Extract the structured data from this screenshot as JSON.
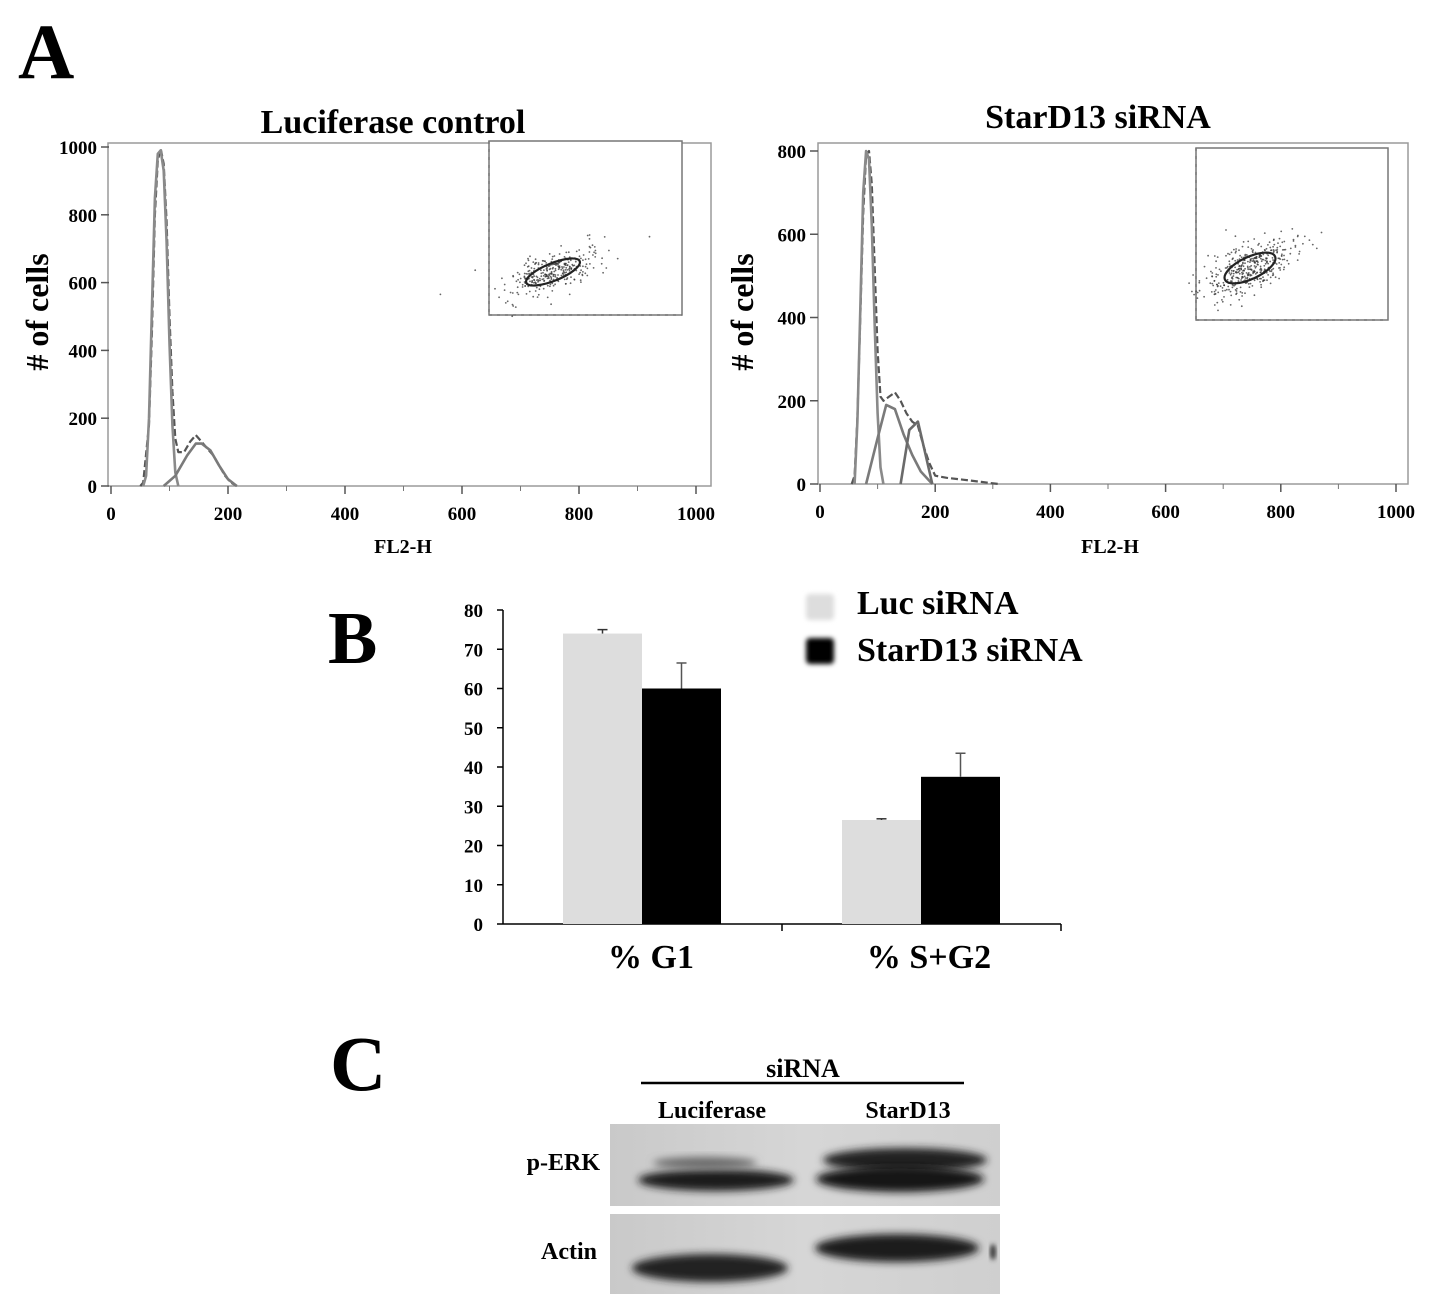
{
  "panels": {
    "a": "A",
    "b": "B",
    "c": "C"
  },
  "chart_data": [
    {
      "type": "line",
      "title": "Luciferase control",
      "xlabel": "FL2-H",
      "ylabel": "# of cells",
      "xlim": [
        0,
        1000
      ],
      "ylim": [
        0,
        1100
      ],
      "x_ticks": [
        0,
        200,
        400,
        600,
        800,
        1000
      ],
      "y_ticks": [
        0,
        200,
        400,
        600,
        800,
        1000
      ],
      "series": [
        {
          "x": [
            50,
            55,
            65,
            70,
            75,
            80,
            85,
            90,
            95,
            100,
            105,
            110,
            115,
            125,
            135,
            145,
            155,
            165,
            175,
            185,
            195,
            205,
            215
          ],
          "values": [
            0,
            10,
            180,
            450,
            800,
            960,
            995,
            950,
            780,
            500,
            280,
            140,
            100,
            100,
            130,
            150,
            130,
            110,
            90,
            60,
            30,
            10,
            0
          ]
        },
        {
          "x": [
            55,
            60,
            65,
            70,
            75,
            80,
            85,
            90,
            95,
            100,
            105,
            110,
            115
          ],
          "values": [
            0,
            30,
            200,
            520,
            850,
            980,
            990,
            930,
            720,
            420,
            180,
            40,
            0
          ]
        },
        {
          "x": [
            90,
            110,
            130,
            145,
            155,
            170,
            185,
            200,
            215
          ],
          "values": [
            0,
            30,
            90,
            125,
            125,
            105,
            60,
            20,
            0
          ]
        }
      ],
      "inset": "scatter"
    },
    {
      "type": "line",
      "title": "StarD13 siRNA",
      "xlabel": "FL2-H",
      "ylabel": "# of cells",
      "xlim": [
        0,
        1000
      ],
      "ylim": [
        0,
        880
      ],
      "x_ticks": [
        0,
        200,
        400,
        600,
        800,
        1000
      ],
      "y_ticks": [
        0,
        200,
        400,
        600,
        800
      ],
      "series": [
        {
          "x": [
            55,
            60,
            65,
            70,
            75,
            80,
            85,
            90,
            95,
            100,
            105,
            110,
            120,
            130,
            140,
            150,
            160,
            170,
            180,
            190,
            200,
            220,
            250,
            280,
            310
          ],
          "values": [
            0,
            20,
            160,
            400,
            650,
            790,
            800,
            720,
            520,
            320,
            210,
            200,
            210,
            220,
            200,
            170,
            150,
            140,
            90,
            50,
            20,
            15,
            10,
            5,
            0
          ]
        },
        {
          "x": [
            60,
            65,
            70,
            75,
            80,
            85,
            90,
            95,
            100,
            105,
            110
          ],
          "values": [
            0,
            150,
            420,
            700,
            800,
            780,
            620,
            380,
            170,
            40,
            0
          ]
        },
        {
          "x": [
            80,
            100,
            115,
            130,
            145,
            160,
            175,
            195
          ],
          "values": [
            0,
            110,
            190,
            180,
            120,
            70,
            30,
            0
          ]
        },
        {
          "x": [
            140,
            155,
            170,
            180,
            195
          ],
          "values": [
            0,
            130,
            150,
            90,
            0
          ]
        }
      ],
      "inset": "scatter"
    },
    {
      "type": "bar",
      "categories": [
        "% G1",
        "% S+G2"
      ],
      "ylim": [
        0,
        80
      ],
      "y_ticks": [
        0,
        10,
        20,
        30,
        40,
        50,
        60,
        70,
        80
      ],
      "legend_position": "top-right",
      "series": [
        {
          "name": "Luc siRNA",
          "color": "#dddddd",
          "values": [
            74,
            26.5
          ],
          "errors": [
            1,
            0.3
          ]
        },
        {
          "name": "StarD13 siRNA",
          "color": "#000000",
          "values": [
            60,
            37.5
          ],
          "errors": [
            6.5,
            6
          ]
        }
      ]
    }
  ],
  "western_blot": {
    "header": "siRNA",
    "lanes": [
      "Luciferase",
      "StarD13"
    ],
    "rows": [
      "p-ERK",
      "Actin"
    ]
  }
}
